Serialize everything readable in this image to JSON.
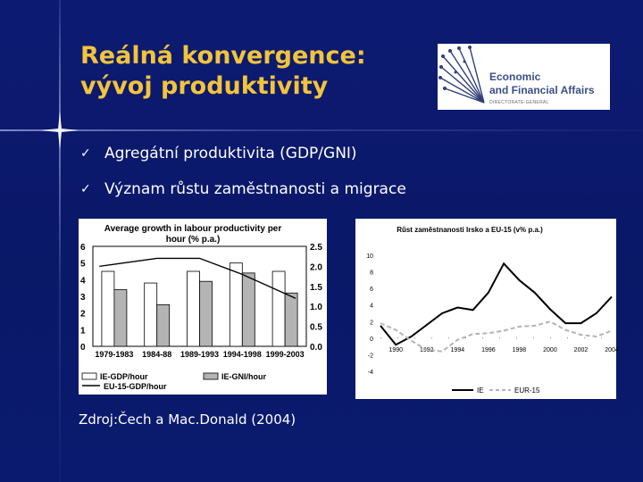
{
  "slide": {
    "title_line1": "Reálná konvergence:",
    "title_line2": "vývoj produktivity",
    "accent": "#f2c43b",
    "background": "#0d1a72"
  },
  "logo": {
    "line1": "Economic",
    "line2": "and Financial Affairs",
    "sub": "DIRECTORATE-GENERAL",
    "text_color": "#3d4f86"
  },
  "bullets": [
    {
      "mark": "✓",
      "text": "Agregátní produktivita (GDP/GNI)"
    },
    {
      "mark": "✓",
      "text": "Význam růstu zaměstnanosti a migrace"
    }
  ],
  "source": "Zdroj:Čech a Mac.Donald (2004)",
  "chart_data": [
    {
      "type": "bar",
      "title_line1": "Average growth in labour productivity per",
      "title_line2": "hour (% p.a.)",
      "categories": [
        "1979-1983",
        "1984-88",
        "1989-1993",
        "1994-1998",
        "1999-2003"
      ],
      "series": [
        {
          "name": "IE-GDP/hour",
          "values": [
            4.5,
            3.8,
            4.5,
            5.0,
            4.5
          ],
          "color": "#ffffff"
        },
        {
          "name": "IE-GNI/hour",
          "values": [
            3.4,
            2.5,
            3.9,
            4.4,
            3.2
          ],
          "color": "#b4b4b4"
        },
        {
          "name": "EU-15-GDP/hour",
          "values": [
            2.0,
            2.2,
            2.2,
            1.8,
            1.2
          ],
          "color": "#000000",
          "axis": "right"
        }
      ],
      "left_axis": {
        "min": 0,
        "max": 6,
        "ticks": [
          "0",
          "1",
          "2",
          "3",
          "4",
          "5",
          "6"
        ]
      },
      "right_axis": {
        "min": 0,
        "max": 2.5,
        "ticks": [
          "0.0",
          "0.5",
          "1.0",
          "1.5",
          "2.0",
          "2.5"
        ]
      }
    },
    {
      "type": "line",
      "title": "Růst zaměstnanosti Irsko a EU-15 (v% p.a.)",
      "x": [
        1989,
        1990,
        1991,
        1992,
        1993,
        1994,
        1995,
        1996,
        1997,
        1998,
        1999,
        2000,
        2001,
        2002,
        2003,
        2004
      ],
      "x_ticks": [
        "1990",
        "1992",
        "1994",
        "1996",
        "1998",
        "2000",
        "2002",
        "2004"
      ],
      "series": [
        {
          "name": "IE",
          "values": [
            1.5,
            -0.8,
            0.2,
            1.6,
            3.0,
            3.7,
            3.4,
            5.5,
            9.0,
            7.0,
            5.5,
            3.5,
            1.8,
            1.8,
            3.0,
            5.0
          ],
          "color": "#000000",
          "style": "solid"
        },
        {
          "name": "EUR-15",
          "values": [
            1.8,
            1.0,
            -0.3,
            -1.4,
            -1.6,
            -0.2,
            0.5,
            0.6,
            0.9,
            1.4,
            1.5,
            2.0,
            1.0,
            0.4,
            0.2,
            0.9
          ],
          "color": "#b4b4b4",
          "style": "dashed"
        }
      ],
      "y_axis": {
        "min": -4,
        "max": 10,
        "ticks": [
          "-4",
          "-2",
          "0",
          "2",
          "4",
          "6",
          "8",
          "10"
        ]
      }
    }
  ]
}
